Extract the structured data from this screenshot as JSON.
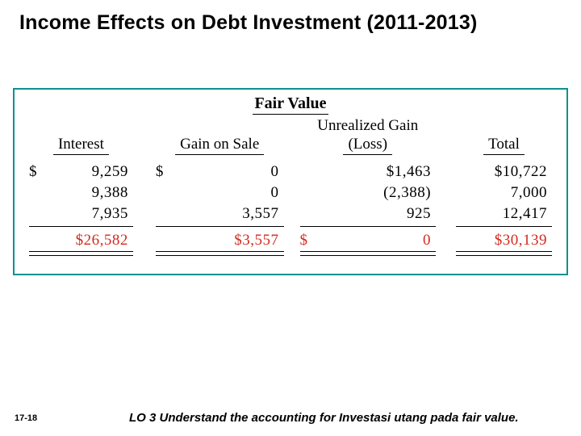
{
  "title": "Income Effects on Debt Investment (2011-2013)",
  "slide_number": "17-18",
  "lo_text": "LO 3  Understand the accounting for Investasi utang pada fair value.",
  "chart": {
    "heading": "Fair Value",
    "columns": {
      "interest": {
        "label": "Interest"
      },
      "gain": {
        "label": "Gain on Sale"
      },
      "ugl": {
        "line1": "Unrealized Gain",
        "line2": "(Loss)"
      },
      "total": {
        "label": "Total"
      }
    },
    "rows": {
      "r1": {
        "interest_cur": "$",
        "interest": "9,259",
        "gain_cur": "$",
        "gain": "0",
        "ugl_cur": "",
        "ugl": "$1,463",
        "total_cur": "",
        "total": "$10,722"
      },
      "r2": {
        "interest_cur": "",
        "interest": "9,388",
        "gain_cur": "",
        "gain": "0",
        "ugl_cur": "",
        "ugl": "(2,388)",
        "total_cur": "",
        "total": "7,000"
      },
      "r3": {
        "interest_cur": "",
        "interest": "7,935",
        "gain_cur": "",
        "gain": "3,557",
        "ugl_cur": "",
        "ugl": "925",
        "total_cur": "",
        "total": "12,417"
      }
    },
    "totals": {
      "interest_cur": "",
      "interest": "$26,582",
      "gain_cur": "",
      "gain": "$3,557",
      "ugl_cur": "$",
      "ugl": "0",
      "total_cur": "",
      "total": "$30,139"
    },
    "colors": {
      "frame_border": "#0e9090",
      "total_text": "#d12a1f",
      "text": "#000000",
      "background": "#ffffff"
    },
    "typography": {
      "title_fontsize_pt": 19,
      "head_fontsize_pt": 14,
      "body_fontsize_pt": 14,
      "font_family_body": "Times New Roman",
      "font_family_title": "Arial"
    }
  }
}
